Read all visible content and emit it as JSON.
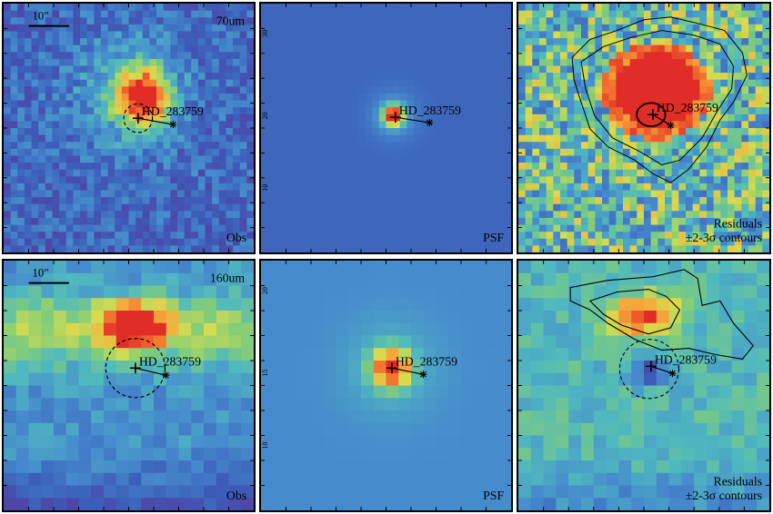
{
  "scale_bar": "10\"",
  "target_name": "HD_283759",
  "rows": [
    {
      "band": "70um",
      "panels": [
        {
          "kind": "obs",
          "caption": [
            "Obs"
          ]
        },
        {
          "kind": "psf",
          "caption": [
            "PSF"
          ]
        },
        {
          "kind": "res",
          "caption": [
            "Residuals",
            "±2-3σ contours"
          ]
        }
      ],
      "axis_ticks": [
        "30",
        "20",
        "10"
      ]
    },
    {
      "band": "160um",
      "panels": [
        {
          "kind": "obs",
          "caption": [
            "Obs"
          ]
        },
        {
          "kind": "psf",
          "caption": [
            "PSF"
          ]
        },
        {
          "kind": "res",
          "caption": [
            "Residuals",
            "±2-3σ contours"
          ]
        }
      ],
      "axis_ticks": [
        "20",
        "15",
        "10"
      ]
    }
  ],
  "colors": {
    "background_blue": "#3e64b4",
    "psf_blue_160": "#4d8fcf",
    "peak_red": "#e3312a",
    "orange": "#f58a3c",
    "yellow": "#e8d94a",
    "green": "#9ccf67",
    "teal": "#4fb5b5",
    "purple": "#5a2f8f"
  }
}
